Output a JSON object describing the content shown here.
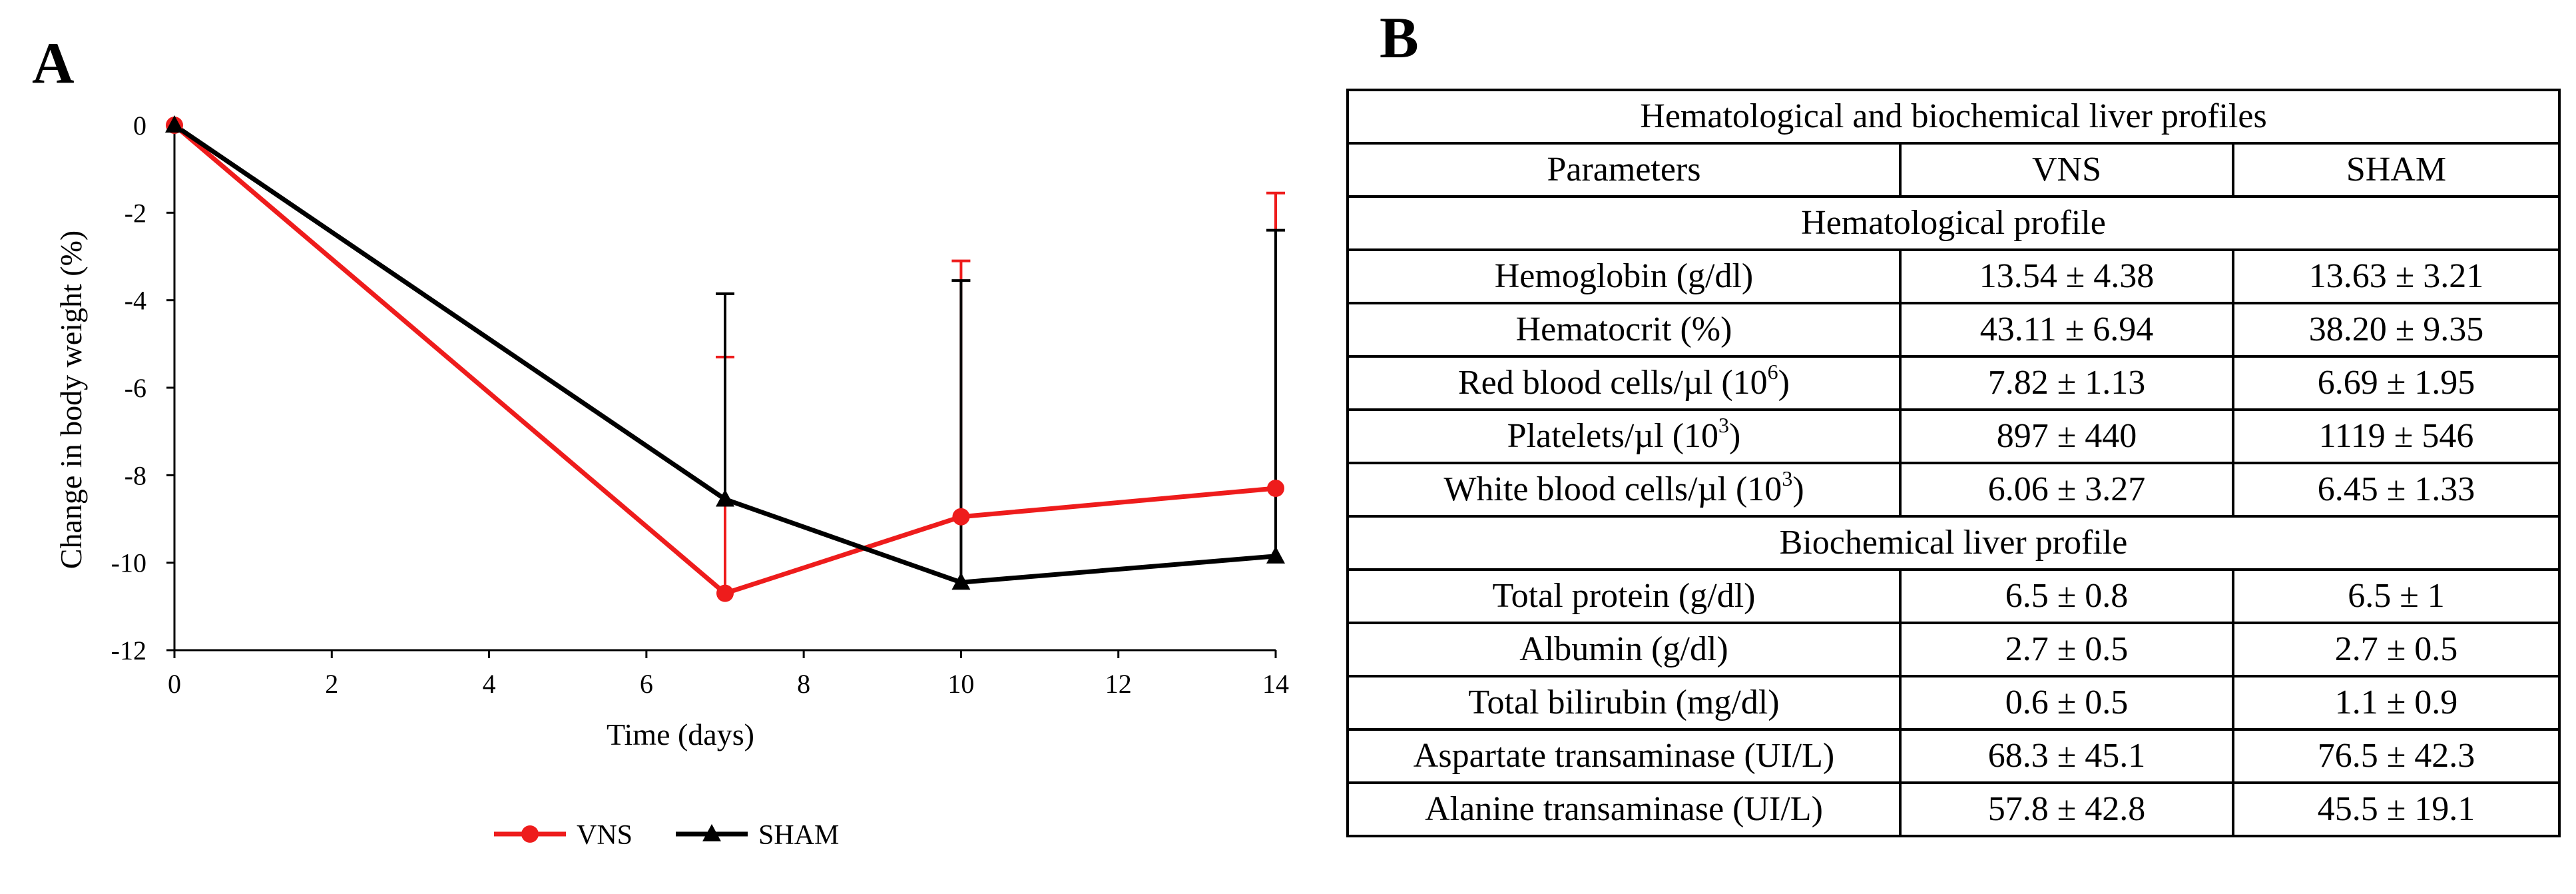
{
  "panels": {
    "a_label": "A",
    "b_label": "B"
  },
  "chart_data": {
    "type": "line",
    "xlabel": "Time (days)",
    "ylabel": "Change in body weight  (%)",
    "xlim": [
      0,
      14
    ],
    "ylim": [
      -12,
      0
    ],
    "x_ticks": [
      "0",
      "2",
      "4",
      "6",
      "8",
      "10",
      "12",
      "14"
    ],
    "y_ticks": [
      "0",
      "-2",
      "-4",
      "-6",
      "-8",
      "-10",
      "-12"
    ],
    "grid": false,
    "legend_position": "bottom",
    "x": [
      0,
      7,
      10,
      14
    ],
    "series": [
      {
        "name": "VNS",
        "color": "#ee1c1c",
        "marker": "circle",
        "values": [
          0,
          -10.7,
          -8.95,
          -8.3
        ],
        "error_up": [
          0,
          5.4,
          5.85,
          6.75
        ]
      },
      {
        "name": "SHAM",
        "color": "#000000",
        "marker": "triangle",
        "values": [
          0,
          -8.55,
          -10.45,
          -9.85
        ],
        "error_up": [
          0,
          4.7,
          6.9,
          7.45
        ]
      }
    ]
  },
  "table": {
    "title": "Hematological  and biochemical liver profiles",
    "headers": [
      "Parameters",
      "VNS",
      "SHAM"
    ],
    "sections": [
      {
        "title": "Hematological  profile",
        "rows": [
          {
            "param": "Hemoglobin (g/dl)",
            "sup": "",
            "param_end": "",
            "vns": "13.54 ± 4.38",
            "sham": "13.63 ± 3.21"
          },
          {
            "param": "Hematocrit (%)",
            "sup": "",
            "param_end": "",
            "vns": "43.11 ± 6.94",
            "sham": "38.20 ± 9.35"
          },
          {
            "param": "Red blood cells/µl (10",
            "sup": "6",
            "param_end": ")",
            "vns": "7.82 ± 1.13",
            "sham": "6.69 ± 1.95"
          },
          {
            "param": "Platelets/µl (10",
            "sup": "3",
            "param_end": ")",
            "vns": "897 ± 440",
            "sham": "1119 ± 546"
          },
          {
            "param": "White blood cells/µl (10",
            "sup": "3",
            "param_end": ")",
            "vns": "6.06 ± 3.27",
            "sham": "6.45 ± 1.33"
          }
        ]
      },
      {
        "title": "Biochemical liver profile",
        "rows": [
          {
            "param": "Total protein (g/dl)",
            "sup": "",
            "param_end": "",
            "vns": "6.5 ± 0.8",
            "sham": "6.5 ± 1"
          },
          {
            "param": "Albumin (g/dl)",
            "sup": "",
            "param_end": "",
            "vns": "2.7 ± 0.5",
            "sham": "2.7 ± 0.5"
          },
          {
            "param": "Total bilirubin (mg/dl)",
            "sup": "",
            "param_end": "",
            "vns": "0.6 ± 0.5",
            "sham": "1.1 ± 0.9"
          },
          {
            "param": "Aspartate transaminase (UI/L)",
            "sup": "",
            "param_end": "",
            "vns": "68.3 ± 45.1",
            "sham": "76.5 ± 42.3"
          },
          {
            "param": "Alanine transaminase (UI/L)",
            "sup": "",
            "param_end": "",
            "vns": "57.8 ± 42.8",
            "sham": "45.5 ± 19.1"
          }
        ]
      }
    ]
  }
}
